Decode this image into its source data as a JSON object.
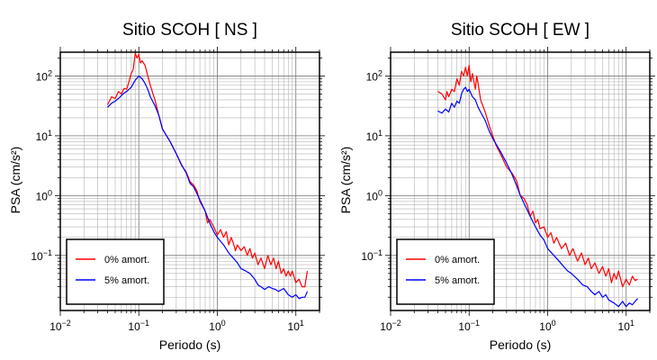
{
  "chart_data": [
    {
      "type": "line",
      "title": "Sitio SCOH [ NS ]",
      "xlabel": "Periodo (s)",
      "ylabel": "PSA (cm/s²)",
      "xscale": "log",
      "yscale": "log",
      "xlim": [
        0.01,
        20
      ],
      "ylim": [
        0.012,
        250
      ],
      "grid": true,
      "legend_position": "bottom-left",
      "x_ticks": [
        {
          "value": 0.01,
          "base": "10",
          "exp": "−2"
        },
        {
          "value": 0.1,
          "base": "10",
          "exp": "−1"
        },
        {
          "value": 1,
          "base": "10",
          "exp": "0"
        },
        {
          "value": 10,
          "base": "10",
          "exp": "1"
        }
      ],
      "y_ticks": [
        {
          "value": 0.1,
          "base": "10",
          "exp": "−1"
        },
        {
          "value": 1,
          "base": "10",
          "exp": "0"
        },
        {
          "value": 10,
          "base": "10",
          "exp": "1"
        },
        {
          "value": 100,
          "base": "10",
          "exp": "2"
        }
      ],
      "series": [
        {
          "name": "0% amort.",
          "color": "#ff0000",
          "points": [
            [
              0.04,
              33
            ],
            [
              0.045,
              45
            ],
            [
              0.05,
              42
            ],
            [
              0.055,
              55
            ],
            [
              0.06,
              50
            ],
            [
              0.065,
              62
            ],
            [
              0.07,
              60
            ],
            [
              0.075,
              80
            ],
            [
              0.08,
              110
            ],
            [
              0.085,
              130
            ],
            [
              0.09,
              240
            ],
            [
              0.095,
              200
            ],
            [
              0.1,
              230
            ],
            [
              0.105,
              165
            ],
            [
              0.11,
              180
            ],
            [
              0.12,
              150
            ],
            [
              0.13,
              100
            ],
            [
              0.14,
              70
            ],
            [
              0.16,
              40
            ],
            [
              0.18,
              22
            ],
            [
              0.2,
              13
            ],
            [
              0.25,
              8
            ],
            [
              0.3,
              5
            ],
            [
              0.35,
              3.2
            ],
            [
              0.4,
              2.5
            ],
            [
              0.45,
              1.7
            ],
            [
              0.5,
              1.5
            ],
            [
              0.55,
              1.2
            ],
            [
              0.6,
              0.8
            ],
            [
              0.7,
              0.55
            ],
            [
              0.75,
              0.35
            ],
            [
              0.8,
              0.4
            ],
            [
              0.9,
              0.3
            ],
            [
              1.0,
              0.22
            ],
            [
              1.1,
              0.27
            ],
            [
              1.2,
              0.2
            ],
            [
              1.3,
              0.25
            ],
            [
              1.4,
              0.15
            ],
            [
              1.5,
              0.2
            ],
            [
              1.6,
              0.16
            ],
            [
              1.7,
              0.12
            ],
            [
              1.8,
              0.15
            ],
            [
              2.0,
              0.12
            ],
            [
              2.2,
              0.14
            ],
            [
              2.4,
              0.1
            ],
            [
              2.6,
              0.13
            ],
            [
              2.8,
              0.09
            ],
            [
              3.0,
              0.11
            ],
            [
              3.3,
              0.07
            ],
            [
              3.6,
              0.09
            ],
            [
              4.0,
              0.06
            ],
            [
              4.4,
              0.1
            ],
            [
              4.8,
              0.07
            ],
            [
              5.2,
              0.09
            ],
            [
              5.6,
              0.06
            ],
            [
              6.0,
              0.08
            ],
            [
              6.5,
              0.05
            ],
            [
              7.0,
              0.06
            ],
            [
              7.5,
              0.045
            ],
            [
              8.0,
              0.055
            ],
            [
              8.5,
              0.045
            ],
            [
              9.0,
              0.055
            ],
            [
              10,
              0.035
            ],
            [
              11,
              0.04
            ],
            [
              12,
              0.03
            ],
            [
              13,
              0.03
            ],
            [
              14,
              0.055
            ]
          ]
        },
        {
          "name": "5% amort.",
          "color": "#0000ff",
          "points": [
            [
              0.04,
              30
            ],
            [
              0.045,
              35
            ],
            [
              0.05,
              38
            ],
            [
              0.055,
              42
            ],
            [
              0.06,
              47
            ],
            [
              0.065,
              52
            ],
            [
              0.07,
              55
            ],
            [
              0.08,
              65
            ],
            [
              0.09,
              85
            ],
            [
              0.1,
              100
            ],
            [
              0.11,
              90
            ],
            [
              0.12,
              75
            ],
            [
              0.13,
              60
            ],
            [
              0.14,
              45
            ],
            [
              0.16,
              32
            ],
            [
              0.18,
              22
            ],
            [
              0.2,
              13
            ],
            [
              0.25,
              8
            ],
            [
              0.3,
              5
            ],
            [
              0.35,
              3.3
            ],
            [
              0.4,
              2.4
            ],
            [
              0.45,
              1.6
            ],
            [
              0.5,
              1.4
            ],
            [
              0.6,
              0.85
            ],
            [
              0.7,
              0.55
            ],
            [
              0.8,
              0.35
            ],
            [
              0.9,
              0.25
            ],
            [
              1.0,
              0.2
            ],
            [
              1.2,
              0.15
            ],
            [
              1.4,
              0.11
            ],
            [
              1.6,
              0.09
            ],
            [
              1.8,
              0.075
            ],
            [
              2.0,
              0.06
            ],
            [
              2.3,
              0.055
            ],
            [
              2.6,
              0.05
            ],
            [
              3.0,
              0.04
            ],
            [
              3.3,
              0.032
            ],
            [
              3.6,
              0.03
            ],
            [
              4.0,
              0.027
            ],
            [
              4.5,
              0.03
            ],
            [
              5.0,
              0.028
            ],
            [
              5.5,
              0.027
            ],
            [
              6.0,
              0.025
            ],
            [
              7.0,
              0.028
            ],
            [
              8.0,
              0.022
            ],
            [
              9.0,
              0.02
            ],
            [
              10,
              0.022
            ],
            [
              11,
              0.019
            ],
            [
              12,
              0.02
            ],
            [
              13,
              0.02
            ],
            [
              14,
              0.025
            ]
          ]
        }
      ]
    },
    {
      "type": "line",
      "title": "Sitio SCOH [ EW ]",
      "xlabel": "Periodo (s)",
      "ylabel": "PSA (cm/s²)",
      "xscale": "log",
      "yscale": "log",
      "xlim": [
        0.01,
        20
      ],
      "ylim": [
        0.012,
        250
      ],
      "grid": true,
      "legend_position": "bottom-left",
      "x_ticks": [
        {
          "value": 0.01,
          "base": "10",
          "exp": "−2"
        },
        {
          "value": 0.1,
          "base": "10",
          "exp": "−1"
        },
        {
          "value": 1,
          "base": "10",
          "exp": "0"
        },
        {
          "value": 10,
          "base": "10",
          "exp": "1"
        }
      ],
      "y_ticks": [
        {
          "value": 0.1,
          "base": "10",
          "exp": "−1"
        },
        {
          "value": 1,
          "base": "10",
          "exp": "0"
        },
        {
          "value": 10,
          "base": "10",
          "exp": "1"
        },
        {
          "value": 100,
          "base": "10",
          "exp": "2"
        }
      ],
      "series": [
        {
          "name": "0% amort.",
          "color": "#ff0000",
          "points": [
            [
              0.04,
              55
            ],
            [
              0.045,
              50
            ],
            [
              0.05,
              40
            ],
            [
              0.052,
              55
            ],
            [
              0.055,
              45
            ],
            [
              0.06,
              60
            ],
            [
              0.065,
              55
            ],
            [
              0.07,
              90
            ],
            [
              0.075,
              70
            ],
            [
              0.08,
              120
            ],
            [
              0.085,
              100
            ],
            [
              0.09,
              140
            ],
            [
              0.095,
              100
            ],
            [
              0.1,
              150
            ],
            [
              0.105,
              80
            ],
            [
              0.11,
              110
            ],
            [
              0.12,
              60
            ],
            [
              0.125,
              100
            ],
            [
              0.13,
              75
            ],
            [
              0.14,
              40
            ],
            [
              0.16,
              25
            ],
            [
              0.18,
              15
            ],
            [
              0.2,
              10
            ],
            [
              0.22,
              7
            ],
            [
              0.25,
              5
            ],
            [
              0.3,
              3
            ],
            [
              0.35,
              2.4
            ],
            [
              0.4,
              1.8
            ],
            [
              0.45,
              1.0
            ],
            [
              0.5,
              0.9
            ],
            [
              0.55,
              0.7
            ],
            [
              0.6,
              0.45
            ],
            [
              0.65,
              0.55
            ],
            [
              0.7,
              0.35
            ],
            [
              0.75,
              0.4
            ],
            [
              0.8,
              0.28
            ],
            [
              0.9,
              0.3
            ],
            [
              1.0,
              0.2
            ],
            [
              1.1,
              0.24
            ],
            [
              1.2,
              0.16
            ],
            [
              1.3,
              0.2
            ],
            [
              1.5,
              0.13
            ],
            [
              1.7,
              0.16
            ],
            [
              1.9,
              0.1
            ],
            [
              2.1,
              0.13
            ],
            [
              2.4,
              0.08
            ],
            [
              2.7,
              0.11
            ],
            [
              3.0,
              0.07
            ],
            [
              3.3,
              0.09
            ],
            [
              3.6,
              0.06
            ],
            [
              4.0,
              0.075
            ],
            [
              4.5,
              0.05
            ],
            [
              5.0,
              0.065
            ],
            [
              5.5,
              0.045
            ],
            [
              6.0,
              0.06
            ],
            [
              6.5,
              0.035
            ],
            [
              7.0,
              0.05
            ],
            [
              7.5,
              0.04
            ],
            [
              8.0,
              0.055
            ],
            [
              9.0,
              0.03
            ],
            [
              10,
              0.04
            ],
            [
              11,
              0.032
            ],
            [
              12,
              0.045
            ],
            [
              13,
              0.038
            ],
            [
              14,
              0.04
            ]
          ]
        },
        {
          "name": "5% amort.",
          "color": "#0000ff",
          "points": [
            [
              0.04,
              26
            ],
            [
              0.045,
              24
            ],
            [
              0.05,
              28
            ],
            [
              0.055,
              25
            ],
            [
              0.06,
              35
            ],
            [
              0.065,
              30
            ],
            [
              0.07,
              38
            ],
            [
              0.075,
              35
            ],
            [
              0.08,
              50
            ],
            [
              0.085,
              60
            ],
            [
              0.09,
              65
            ],
            [
              0.095,
              55
            ],
            [
              0.1,
              60
            ],
            [
              0.11,
              45
            ],
            [
              0.12,
              40
            ],
            [
              0.13,
              30
            ],
            [
              0.14,
              25
            ],
            [
              0.16,
              18
            ],
            [
              0.18,
              12
            ],
            [
              0.2,
              9
            ],
            [
              0.25,
              5.5
            ],
            [
              0.3,
              3.5
            ],
            [
              0.35,
              2.3
            ],
            [
              0.4,
              1.5
            ],
            [
              0.45,
              1.0
            ],
            [
              0.5,
              0.75
            ],
            [
              0.6,
              0.45
            ],
            [
              0.7,
              0.3
            ],
            [
              0.8,
              0.22
            ],
            [
              0.9,
              0.18
            ],
            [
              1.0,
              0.13
            ],
            [
              1.2,
              0.1
            ],
            [
              1.4,
              0.08
            ],
            [
              1.6,
              0.065
            ],
            [
              1.8,
              0.055
            ],
            [
              2.0,
              0.05
            ],
            [
              2.4,
              0.04
            ],
            [
              2.8,
              0.032
            ],
            [
              3.2,
              0.03
            ],
            [
              3.6,
              0.025
            ],
            [
              4.0,
              0.022
            ],
            [
              4.5,
              0.025
            ],
            [
              5.0,
              0.02
            ],
            [
              5.5,
              0.022
            ],
            [
              6.0,
              0.018
            ],
            [
              7.0,
              0.016
            ],
            [
              8.0,
              0.014
            ],
            [
              9.0,
              0.017
            ],
            [
              10,
              0.014
            ],
            [
              11,
              0.016
            ],
            [
              12,
              0.015
            ],
            [
              13,
              0.017
            ],
            [
              14,
              0.019
            ]
          ]
        }
      ]
    }
  ]
}
